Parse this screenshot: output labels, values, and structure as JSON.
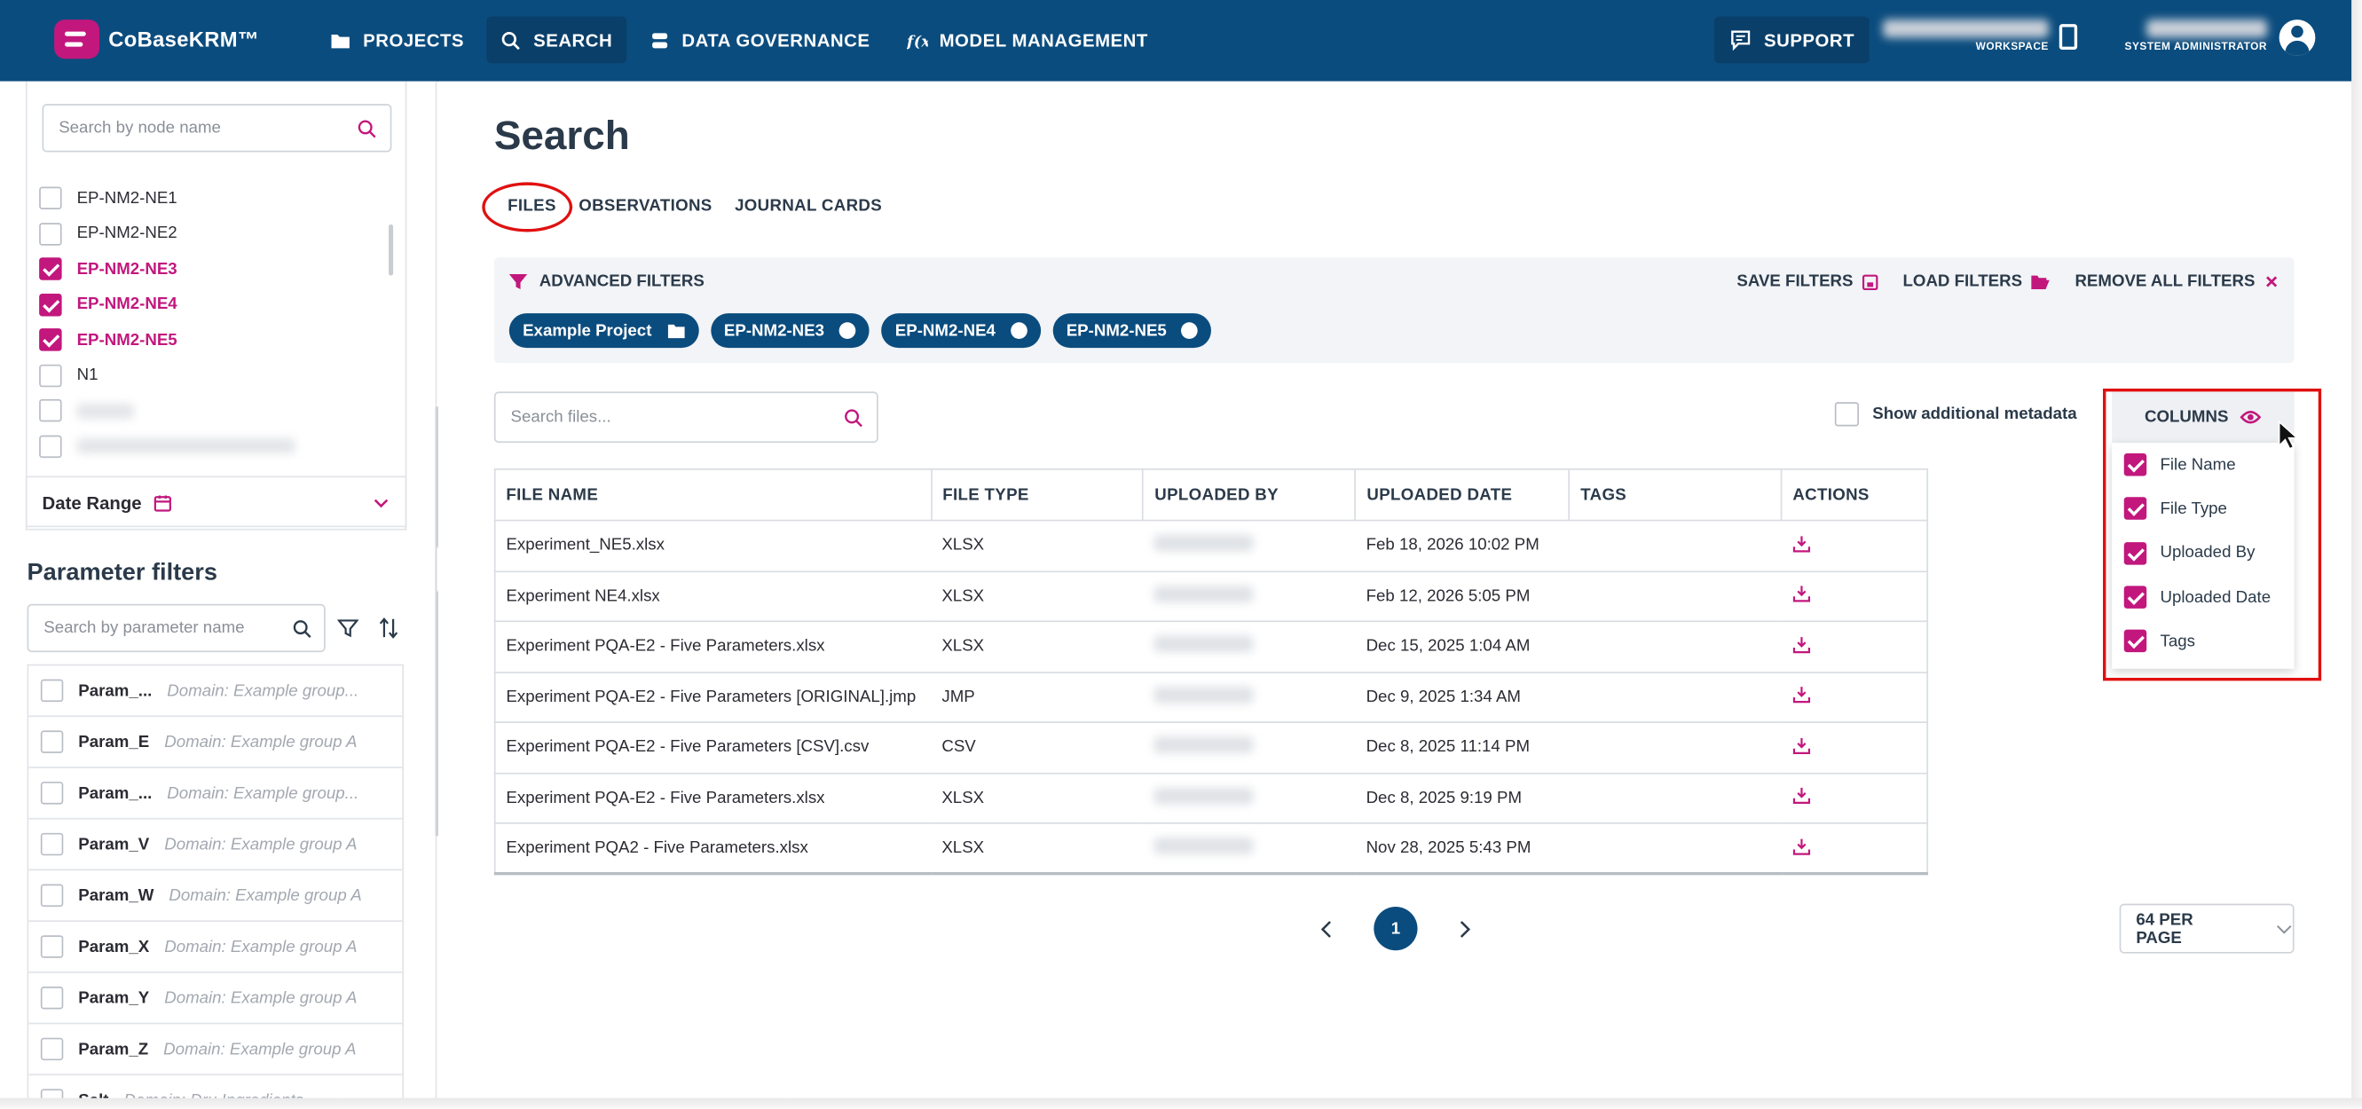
{
  "app": {
    "logo_text": "CoBaseKRM™"
  },
  "nav": {
    "items": [
      {
        "label": "PROJECTS",
        "icon": "folder-icon"
      },
      {
        "label": "SEARCH",
        "icon": "search-icon"
      },
      {
        "label": "DATA GOVERNANCE",
        "icon": "database-icon"
      },
      {
        "label": "MODEL MANAGEMENT",
        "icon": "function-icon"
      }
    ],
    "active": "SEARCH",
    "support": "SUPPORT",
    "workspace_caption": "WORKSPACE",
    "role_caption": "SYSTEM ADMINISTRATOR"
  },
  "sidebar": {
    "node_search_placeholder": "Search by node name",
    "nodes": [
      {
        "label": "EP-NM2-NE1",
        "checked": false
      },
      {
        "label": "EP-NM2-NE2",
        "checked": false
      },
      {
        "label": "EP-NM2-NE3",
        "checked": true
      },
      {
        "label": "EP-NM2-NE4",
        "checked": true
      },
      {
        "label": "EP-NM2-NE5",
        "checked": true
      },
      {
        "label": "N1",
        "checked": false
      }
    ],
    "date_range": "Date Range",
    "param_title": "Parameter filters",
    "param_search_placeholder": "Search by parameter name",
    "params": [
      {
        "name": "Param_...",
        "domain": "Domain: Example group..."
      },
      {
        "name": "Param_E",
        "domain": "Domain: Example group A"
      },
      {
        "name": "Param_...",
        "domain": "Domain: Example group..."
      },
      {
        "name": "Param_V",
        "domain": "Domain: Example group A"
      },
      {
        "name": "Param_W",
        "domain": "Domain: Example group A"
      },
      {
        "name": "Param_X",
        "domain": "Domain: Example group A"
      },
      {
        "name": "Param_Y",
        "domain": "Domain: Example group A"
      },
      {
        "name": "Param_Z",
        "domain": "Domain: Example group A"
      },
      {
        "name": "Salt",
        "domain": "Domain: Dru Ingredients"
      }
    ]
  },
  "main": {
    "title": "Search",
    "tabs": [
      "FILES",
      "OBSERVATIONS",
      "JOURNAL CARDS"
    ],
    "advanced": {
      "title": "ADVANCED FILTERS",
      "save": "SAVE FILTERS",
      "load": "LOAD FILTERS",
      "remove": "REMOVE ALL FILTERS",
      "chips": [
        "Example Project",
        "EP-NM2-NE3",
        "EP-NM2-NE4",
        "EP-NM2-NE5"
      ]
    },
    "file_search_placeholder": "Search files...",
    "show_meta": "Show additional metadata",
    "columns_label": "COLUMNS",
    "column_options": [
      "File Name",
      "File Type",
      "Uploaded By",
      "Uploaded Date",
      "Tags"
    ],
    "table": {
      "headers": [
        "FILE NAME",
        "FILE TYPE",
        "UPLOADED BY",
        "UPLOADED DATE",
        "TAGS",
        "ACTIONS"
      ],
      "rows": [
        {
          "name": "Experiment_NE5.xlsx",
          "type": "XLSX",
          "date": "Feb 18, 2026 10:02 PM"
        },
        {
          "name": "Experiment NE4.xlsx",
          "type": "XLSX",
          "date": "Feb 12, 2026 5:05 PM"
        },
        {
          "name": "Experiment PQA-E2 - Five Parameters.xlsx",
          "type": "XLSX",
          "date": "Dec 15, 2025 1:04 AM"
        },
        {
          "name": "Experiment PQA-E2 - Five Parameters [ORIGINAL].jmp",
          "type": "JMP",
          "date": "Dec 9, 2025 1:34 AM"
        },
        {
          "name": "Experiment PQA-E2 - Five Parameters [CSV].csv",
          "type": "CSV",
          "date": "Dec 8, 2025 11:14 PM"
        },
        {
          "name": "Experiment PQA-E2 - Five Parameters.xlsx",
          "type": "XLSX",
          "date": "Dec 8, 2025 9:19 PM"
        },
        {
          "name": "Experiment PQA2 - Five Parameters.xlsx",
          "type": "XLSX",
          "date": "Nov 28, 2025 5:43 PM"
        }
      ]
    },
    "page": "1",
    "per_page": "64 PER PAGE"
  },
  "colors": {
    "brand": "#0b4c7e",
    "accent": "#c2177d",
    "annotation": "#e01010"
  }
}
